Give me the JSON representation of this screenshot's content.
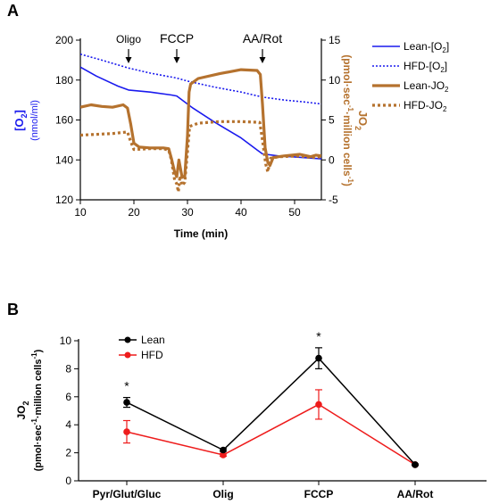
{
  "colors": {
    "lean_o2": "#1a1aee",
    "hfd_o2": "#1a1aee",
    "lean_jo2": "#b5722e",
    "hfd_jo2": "#b5722e",
    "lean_b": "#000000",
    "hfd_b": "#ee1c1c",
    "left_axis": "#1a1aee",
    "right_axis": "#b5722e"
  },
  "panel_a": {
    "label": "A",
    "annotations": [
      "Oligo",
      "FCCP",
      "AA/Rot"
    ],
    "left_axis_title": "[O",
    "left_axis_sub": "2",
    "left_axis_suffix": "]",
    "left_axis_units": "(nmol/ml)",
    "right_axis_title": "JO",
    "right_axis_sub": "2",
    "right_axis_units_1": "(pmol·sec",
    "right_axis_units_sup1": "-1",
    "right_axis_units_2": "·million cells",
    "right_axis_units_sup2": "-1",
    "right_axis_units_3": ")",
    "xlabel": "Time (min)",
    "legend": [
      {
        "pre": "Lean-[O",
        "sub": "2",
        "post": "]"
      },
      {
        "pre": "HFD-[O",
        "sub": "2",
        "post": "]"
      },
      {
        "pre": "Lean-JO",
        "sub": "2",
        "post": ""
      },
      {
        "pre": "HFD-JO",
        "sub": "2",
        "post": ""
      }
    ]
  },
  "panel_b": {
    "label": "B",
    "ylabel_main": "JO",
    "ylabel_sub": "2",
    "ylabel_units_1": "(pmol·sec",
    "ylabel_units_sup1": "-1",
    "ylabel_units_2": "·million cells",
    "ylabel_units_sup2": "-1",
    "ylabel_units_3": ")",
    "significance": "*",
    "legend": [
      "Lean",
      "HFD"
    ]
  },
  "chart_data": [
    {
      "type": "line",
      "x_ticks": [
        10,
        20,
        30,
        40,
        50
      ],
      "xlim": [
        10,
        55
      ],
      "y_left_ticks": [
        120,
        140,
        160,
        180,
        200
      ],
      "y_left_lim": [
        120,
        200
      ],
      "y_right_ticks": [
        -5,
        0,
        5,
        10,
        15
      ],
      "y_right_lim": [
        -5,
        15
      ],
      "annotation_x": [
        19,
        28,
        44
      ],
      "series": [
        {
          "name": "Lean-[O2]",
          "axis": "left",
          "style": "solid-thin",
          "points": [
            [
              10,
              186.5
            ],
            [
              13,
              182
            ],
            [
              17,
              177
            ],
            [
              19,
              175
            ],
            [
              23,
              174
            ],
            [
              27,
              172.5
            ],
            [
              28,
              172
            ],
            [
              29,
              170
            ],
            [
              31,
              166
            ],
            [
              35,
              159
            ],
            [
              40,
              151
            ],
            [
              43,
              145
            ],
            [
              44,
              143
            ],
            [
              47,
              142
            ],
            [
              50,
              141.5
            ],
            [
              55,
              140.5
            ]
          ]
        },
        {
          "name": "HFD-[O2]",
          "axis": "left",
          "style": "dotted-thin",
          "points": [
            [
              10,
              193
            ],
            [
              14,
              190
            ],
            [
              19,
              186
            ],
            [
              23,
              183.5
            ],
            [
              28,
              181
            ],
            [
              30,
              179.5
            ],
            [
              35,
              176.5
            ],
            [
              40,
              174
            ],
            [
              44,
              171.5
            ],
            [
              48,
              170
            ],
            [
              52,
              169
            ],
            [
              55,
              168
            ]
          ]
        },
        {
          "name": "Lean-JO2",
          "axis": "right",
          "style": "solid-thick",
          "points": [
            [
              10,
              6.6
            ],
            [
              12,
              6.9
            ],
            [
              14,
              6.7
            ],
            [
              16,
              6.6
            ],
            [
              18,
              6.9
            ],
            [
              18.8,
              6.5
            ],
            [
              19.4,
              4.5
            ],
            [
              20,
              2.1
            ],
            [
              21,
              1.6
            ],
            [
              23,
              1.5
            ],
            [
              25.5,
              1.5
            ],
            [
              26.5,
              1.4
            ],
            [
              27,
              0.2
            ],
            [
              27.6,
              -1.5
            ],
            [
              28,
              -2.1
            ],
            [
              28.4,
              0
            ],
            [
              29,
              -2.2
            ],
            [
              29.5,
              -2
            ],
            [
              30,
              3
            ],
            [
              30.3,
              8.5
            ],
            [
              30.6,
              9.5
            ],
            [
              32,
              10.2
            ],
            [
              36,
              10.8
            ],
            [
              40,
              11.3
            ],
            [
              43,
              11.2
            ],
            [
              43.6,
              10.7
            ],
            [
              44,
              7
            ],
            [
              44.5,
              1.5
            ],
            [
              45,
              -0.3
            ],
            [
              45.4,
              -0.7
            ],
            [
              46,
              0.3
            ],
            [
              48,
              0.5
            ],
            [
              51,
              0.7
            ],
            [
              53,
              0.4
            ],
            [
              54,
              0.6
            ],
            [
              55,
              0.5
            ]
          ]
        },
        {
          "name": "HFD-JO2",
          "axis": "right",
          "style": "dotted-thick",
          "points": [
            [
              10,
              3.1
            ],
            [
              13,
              3.2
            ],
            [
              16,
              3.3
            ],
            [
              18.8,
              3.5
            ],
            [
              19.4,
              2.3
            ],
            [
              20,
              1.3
            ],
            [
              23,
              1.4
            ],
            [
              25.5,
              1.4
            ],
            [
              26.5,
              1.2
            ],
            [
              27,
              0
            ],
            [
              27.6,
              -2.5
            ],
            [
              28,
              -3
            ],
            [
              28.3,
              -4
            ],
            [
              28.6,
              -2
            ],
            [
              29,
              -3.2
            ],
            [
              29.5,
              -2.8
            ],
            [
              30,
              1
            ],
            [
              30.4,
              4.2
            ],
            [
              32,
              4.6
            ],
            [
              36,
              4.8
            ],
            [
              40,
              4.8
            ],
            [
              43.5,
              4.7
            ],
            [
              44,
              2.5
            ],
            [
              44.6,
              -0.5
            ],
            [
              45,
              -1.5
            ],
            [
              45.5,
              0.2
            ],
            [
              47,
              0.4
            ],
            [
              51,
              0.5
            ],
            [
              53,
              0.3
            ],
            [
              55,
              0.4
            ]
          ]
        }
      ]
    },
    {
      "type": "line",
      "categories": [
        "Pyr/Glut/Gluc",
        "Olig",
        "FCCP",
        "AA/Rot"
      ],
      "y_ticks": [
        0,
        2,
        4,
        6,
        8,
        10
      ],
      "ylim": [
        0,
        10
      ],
      "significant": [
        true,
        false,
        true,
        false
      ],
      "series": [
        {
          "name": "Lean",
          "values": [
            5.6,
            2.2,
            8.75,
            1.15
          ],
          "error": [
            0.35,
            0.1,
            0.75,
            0.05
          ]
        },
        {
          "name": "HFD",
          "values": [
            3.5,
            1.85,
            5.45,
            1.15
          ],
          "error": [
            0.8,
            0.1,
            1.05,
            0.05
          ]
        }
      ]
    }
  ]
}
